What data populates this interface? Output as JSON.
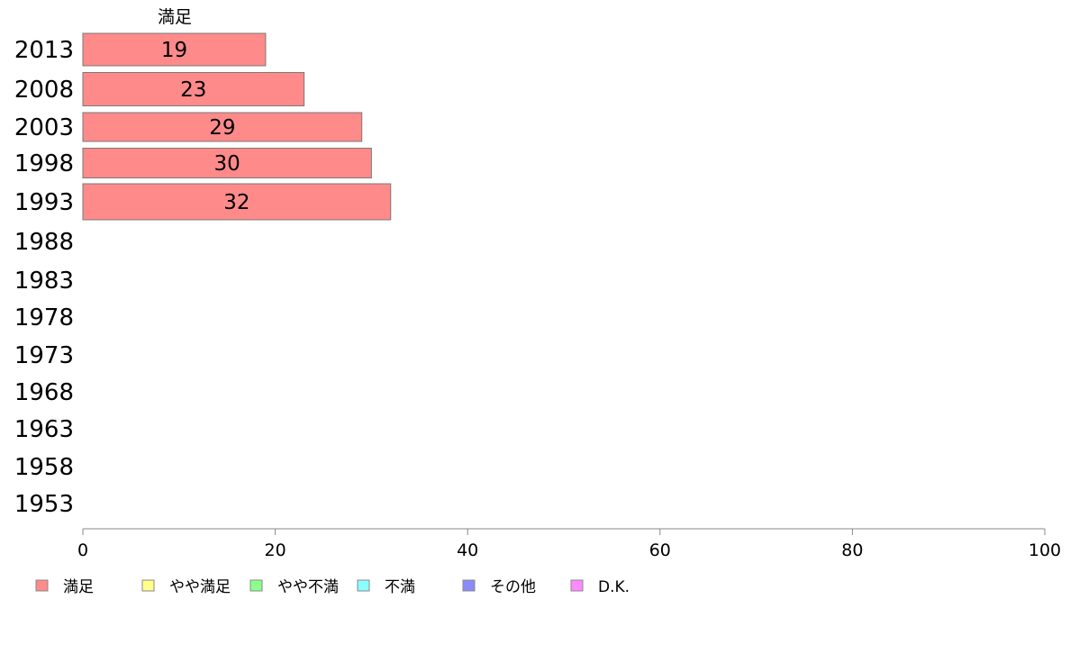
{
  "chart_data": {
    "type": "bar",
    "orientation": "horizontal",
    "series_title": "満足",
    "categories": [
      "2013",
      "2008",
      "2003",
      "1998",
      "1993",
      "1988",
      "1983",
      "1978",
      "1973",
      "1968",
      "1963",
      "1958",
      "1953"
    ],
    "series": [
      {
        "name": "満足",
        "color": "#ff8a8a",
        "values": [
          19,
          23,
          29,
          30,
          32,
          null,
          null,
          null,
          null,
          null,
          null,
          null,
          null
        ]
      }
    ],
    "xlim": [
      0,
      100
    ],
    "xticks": [
      "0",
      "20",
      "40",
      "60",
      "80",
      "100"
    ],
    "grid": false,
    "legend": {
      "placement": "bottom",
      "items": [
        {
          "label": "満足",
          "color": "#ff8a8a"
        },
        {
          "label": "やや満足",
          "color": "#ffff8a"
        },
        {
          "label": "やや不満",
          "color": "#8aff8a"
        },
        {
          "label": "不満",
          "color": "#8affff"
        },
        {
          "label": "その他",
          "color": "#8a8aff"
        },
        {
          "label": "D.K.",
          "color": "#ff8aff"
        }
      ]
    }
  }
}
